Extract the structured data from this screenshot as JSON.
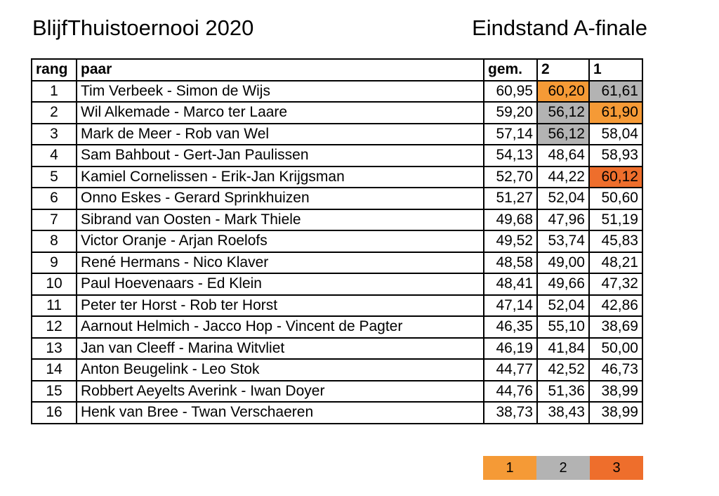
{
  "header": {
    "title": "BlijfThuistoernooi 2020",
    "subtitle": "Eindstand A-finale"
  },
  "colors": {
    "place_1": "#f59a36",
    "place_2": "#b3b3b3",
    "place_3": "#ee6e2c"
  },
  "table": {
    "columns": [
      "rang",
      "paar",
      "gem.",
      "2",
      "1"
    ],
    "rows": [
      {
        "rank": "1",
        "pair": "Tim Verbeek - Simon de Wijs",
        "avg": "60,95",
        "s2": "60,20",
        "s1": "61,61",
        "hl2": "place_1",
        "hl1": "place_2"
      },
      {
        "rank": "2",
        "pair": "Wil Alkemade - Marco ter Laare",
        "avg": "59,20",
        "s2": "56,12",
        "s1": "61,90",
        "hl2": "place_2",
        "hl1": "place_1"
      },
      {
        "rank": "3",
        "pair": "Mark de Meer - Rob van Wel",
        "avg": "57,14",
        "s2": "56,12",
        "s1": "58,04",
        "hl2": "place_2",
        "hl1": ""
      },
      {
        "rank": "4",
        "pair": "Sam Bahbout - Gert-Jan Paulissen",
        "avg": "54,13",
        "s2": "48,64",
        "s1": "58,93",
        "hl2": "",
        "hl1": ""
      },
      {
        "rank": "5",
        "pair": "Kamiel Cornelissen - Erik-Jan Krijgsman",
        "avg": "52,70",
        "s2": "44,22",
        "s1": "60,12",
        "hl2": "",
        "hl1": "place_3"
      },
      {
        "rank": "6",
        "pair": "Onno Eskes - Gerard Sprinkhuizen",
        "avg": "51,27",
        "s2": "52,04",
        "s1": "50,60",
        "hl2": "",
        "hl1": ""
      },
      {
        "rank": "7",
        "pair": "Sibrand van Oosten - Mark Thiele",
        "avg": "49,68",
        "s2": "47,96",
        "s1": "51,19",
        "hl2": "",
        "hl1": ""
      },
      {
        "rank": "8",
        "pair": "Victor Oranje - Arjan Roelofs",
        "avg": "49,52",
        "s2": "53,74",
        "s1": "45,83",
        "hl2": "",
        "hl1": ""
      },
      {
        "rank": "9",
        "pair": "René Hermans - Nico Klaver",
        "avg": "48,58",
        "s2": "49,00",
        "s1": "48,21",
        "hl2": "",
        "hl1": ""
      },
      {
        "rank": "10",
        "pair": "Paul Hoevenaars - Ed Klein",
        "avg": "48,41",
        "s2": "49,66",
        "s1": "47,32",
        "hl2": "",
        "hl1": ""
      },
      {
        "rank": "11",
        "pair": "Peter ter Horst - Rob ter Horst",
        "avg": "47,14",
        "s2": "52,04",
        "s1": "42,86",
        "hl2": "",
        "hl1": ""
      },
      {
        "rank": "12",
        "pair": "Aarnout Helmich - Jacco Hop - Vincent de Pagter",
        "avg": "46,35",
        "s2": "55,10",
        "s1": "38,69",
        "hl2": "",
        "hl1": ""
      },
      {
        "rank": "13",
        "pair": "Jan van Cleeff - Marina Witvliet",
        "avg": "46,19",
        "s2": "41,84",
        "s1": "50,00",
        "hl2": "",
        "hl1": ""
      },
      {
        "rank": "14",
        "pair": "Anton Beugelink - Leo Stok",
        "avg": "44,77",
        "s2": "42,52",
        "s1": "46,73",
        "hl2": "",
        "hl1": ""
      },
      {
        "rank": "15",
        "pair": "Robbert Aeyelts Averink - Iwan Doyer",
        "avg": "44,76",
        "s2": "51,36",
        "s1": "38,99",
        "hl2": "",
        "hl1": ""
      },
      {
        "rank": "16",
        "pair": "Henk van Bree - Twan Verschaeren",
        "avg": "38,73",
        "s2": "38,43",
        "s1": "38,99",
        "hl2": "",
        "hl1": ""
      }
    ]
  },
  "legend": [
    {
      "label": "1",
      "color": "place_1"
    },
    {
      "label": "2",
      "color": "place_2"
    },
    {
      "label": "3",
      "color": "place_3"
    }
  ]
}
